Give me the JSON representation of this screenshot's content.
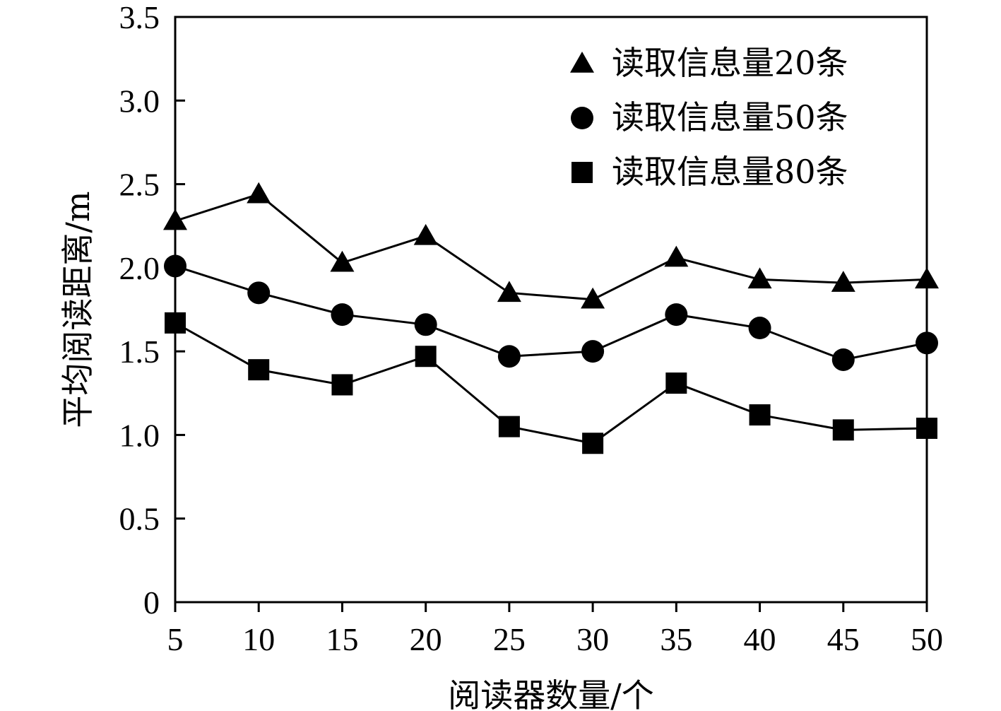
{
  "chart_data": {
    "type": "line",
    "x": [
      5,
      10,
      15,
      20,
      25,
      30,
      35,
      40,
      45,
      50
    ],
    "series": [
      {
        "name": "读取信息量20条",
        "marker": "triangle",
        "values": [
          2.28,
          2.44,
          2.03,
          2.19,
          1.85,
          1.81,
          2.06,
          1.93,
          1.91,
          1.93
        ]
      },
      {
        "name": "读取信息量50条",
        "marker": "circle",
        "values": [
          2.01,
          1.85,
          1.72,
          1.66,
          1.47,
          1.5,
          1.72,
          1.64,
          1.45,
          1.55
        ]
      },
      {
        "name": "读取信息量80条",
        "marker": "square",
        "values": [
          1.67,
          1.39,
          1.3,
          1.47,
          1.05,
          0.95,
          1.31,
          1.12,
          1.03,
          1.04
        ]
      }
    ],
    "xlabel": "阅读器数量/个",
    "ylabel": "平均阅读距离/m",
    "x_ticks": [
      "5",
      "10",
      "15",
      "20",
      "25",
      "30",
      "35",
      "40",
      "45",
      "50"
    ],
    "y_ticks": [
      "0",
      "0.5",
      "1.0",
      "1.5",
      "2.0",
      "2.5",
      "3.0",
      "3.5"
    ],
    "xlim": [
      5,
      50
    ],
    "ylim": [
      0,
      3.5
    ],
    "grid": false,
    "legend_position": "top-right",
    "color": "#000000"
  }
}
